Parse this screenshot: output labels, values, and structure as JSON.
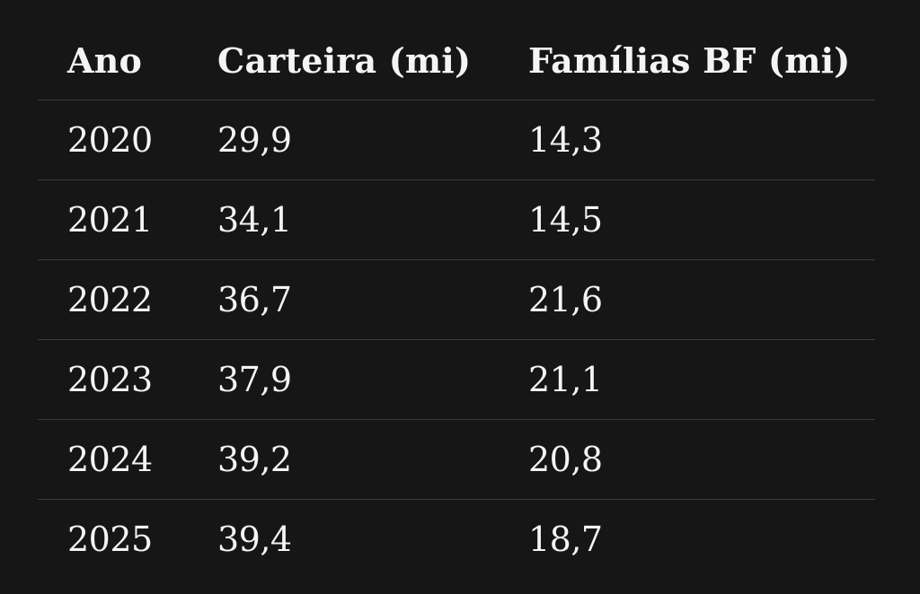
{
  "table": {
    "headers": [
      "Ano",
      "Carteira (mi)",
      "Famílias BF (mi)"
    ],
    "rows": [
      [
        "2020",
        "29,9",
        "14,3"
      ],
      [
        "2021",
        "34,1",
        "14,5"
      ],
      [
        "2022",
        "36,7",
        "21,6"
      ],
      [
        "2023",
        "37,9",
        "21,1"
      ],
      [
        "2024",
        "39,2",
        "20,8"
      ],
      [
        "2025",
        "39,4",
        "18,7"
      ]
    ]
  },
  "colors": {
    "background": "#161616",
    "text": "#f4f4f4",
    "row_divider": "#3a3a3a"
  }
}
